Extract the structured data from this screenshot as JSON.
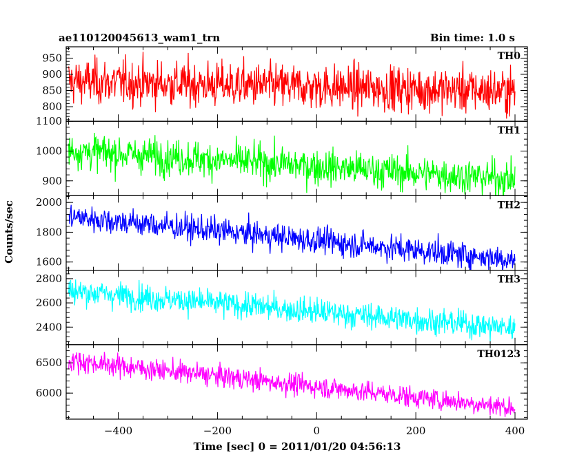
{
  "header": {
    "left_title": "ae110120045613_wam1_trn",
    "right_title": "Bin time: 1.0 s"
  },
  "chart_data": {
    "type": "line",
    "title": "ae110120045613_wam1_trn",
    "subtitle": "Bin time: 1.0 s",
    "xlabel": "Time [sec] 0 = 2011/01/20 04:56:13",
    "ylabel": "Counts/sec",
    "xlim": [
      -505,
      425
    ],
    "x_ticks": [
      -400,
      -200,
      0,
      200,
      400
    ],
    "x_start": -500,
    "x_end": 400,
    "x_step": 1,
    "grid": false,
    "panels": [
      {
        "name": "TH0",
        "color": "#ff0000",
        "ylim": [
          755,
          985
        ],
        "y_ticks": [
          800,
          850,
          900,
          950
        ],
        "trend_start": 878,
        "trend_end": 848,
        "noise_sd": 35
      },
      {
        "name": "TH1",
        "color": "#00ff00",
        "ylim": [
          850,
          1100
        ],
        "y_ticks": [
          900,
          1000,
          1100
        ],
        "trend_start": 1002,
        "trend_end": 905,
        "noise_sd": 30
      },
      {
        "name": "TH2",
        "color": "#0000ff",
        "ylim": [
          1545,
          2045
        ],
        "y_ticks": [
          1600,
          1800,
          2000
        ],
        "trend_start": 1905,
        "trend_end": 1615,
        "noise_sd": 45
      },
      {
        "name": "TH3",
        "color": "#00ffff",
        "ylim": [
          2255,
          2870
        ],
        "y_ticks": [
          2400,
          2600,
          2800
        ],
        "trend_start": 2700,
        "trend_end": 2390,
        "noise_sd": 55
      },
      {
        "name": "TH0123",
        "color": "#ff00ff",
        "ylim": [
          5570,
          6800
        ],
        "y_ticks": [
          6000,
          6500
        ],
        "trend_start": 6540,
        "trend_end": 5760,
        "noise_sd": 90
      }
    ]
  }
}
